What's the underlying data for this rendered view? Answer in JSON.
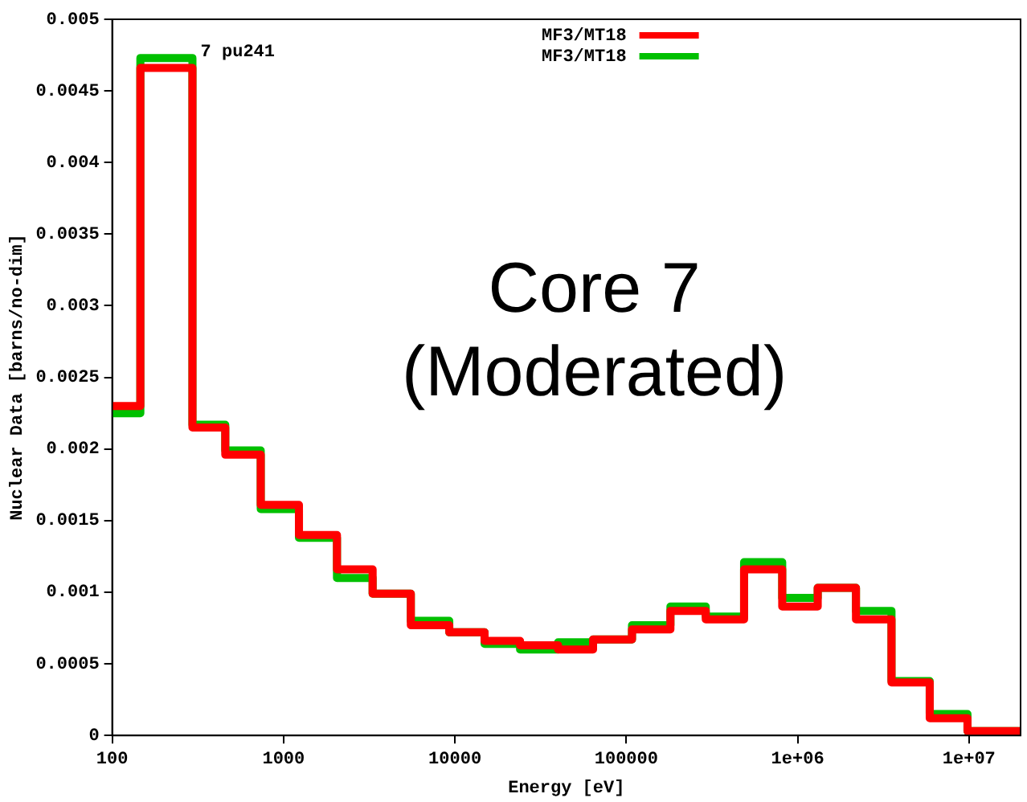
{
  "chart_data": {
    "type": "histogram",
    "xlabel": "Energy [eV]",
    "ylabel": "Nuclear Data [barns/no-dim]",
    "annotations": [
      "7 pu241",
      "Core 7",
      "(Moderated)"
    ],
    "bins": [
      100,
      146,
      294,
      457,
      736,
      1230,
      2050,
      3310,
      5530,
      9270,
      14900,
      24000,
      40000,
      64000,
      108000,
      181000,
      291000,
      487000,
      813000,
      1310000,
      2190000,
      3530000,
      5900000,
      9800000,
      20000000
    ],
    "series": [
      {
        "name": "MF3/MT18",
        "color": "#ff0000",
        "values": [
          0.0023,
          0.00466,
          0.00215,
          0.00196,
          0.00161,
          0.0014,
          0.00116,
          0.00099,
          0.00077,
          0.00072,
          0.00066,
          0.00063,
          0.0006,
          0.00067,
          0.00074,
          0.00087,
          0.00081,
          0.00116,
          0.0009,
          0.00103,
          0.00081,
          0.00037,
          0.00012,
          3e-05
        ]
      },
      {
        "name": "MF3/MT18",
        "color": "#00c000",
        "values": [
          0.00225,
          0.00473,
          0.00217,
          0.00199,
          0.00158,
          0.00138,
          0.0011,
          0.00099,
          0.0008,
          0.00072,
          0.00064,
          0.0006,
          0.00065,
          0.00067,
          0.00077,
          0.0009,
          0.00083,
          0.00121,
          0.00096,
          0.00103,
          0.00087,
          0.00038,
          0.00015,
          3e-05
        ]
      }
    ],
    "log": "x",
    "xlim": [
      100,
      20000000
    ],
    "xticks": [
      100,
      1000,
      10000,
      100000,
      {
        "value": 1000000,
        "label": "1e+06"
      },
      {
        "value": 10000000,
        "label": "1e+07"
      }
    ],
    "ylim": [
      0,
      0.005
    ],
    "yticks": [
      0,
      0.0005,
      0.001,
      0.0015,
      0.002,
      0.0025,
      0.003,
      0.0035,
      0.004,
      0.0045,
      0.005
    ],
    "grid": false,
    "legend": "top right"
  }
}
